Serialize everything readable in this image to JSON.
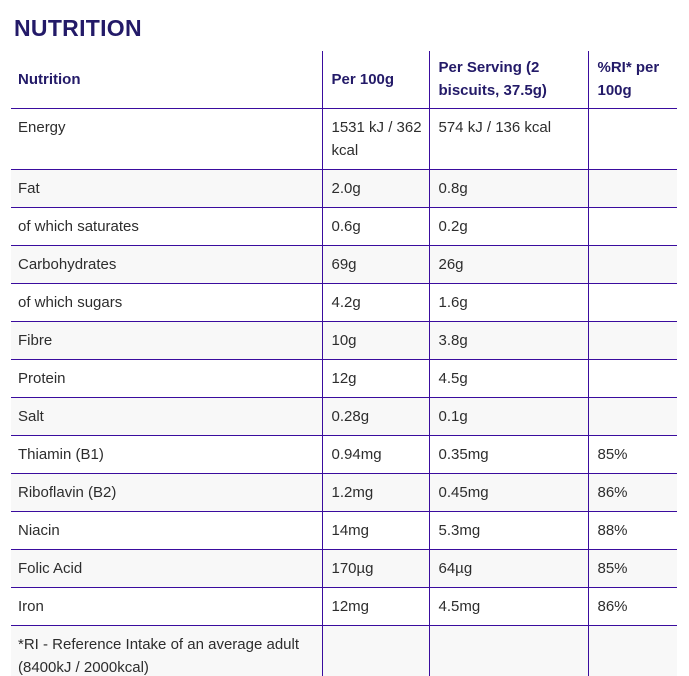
{
  "heading": "NUTRITION",
  "colors": {
    "accent_line": "#3a0c9e",
    "heading_text": "#231a68",
    "body_text": "#2d2d2d",
    "alt_row_bg": "#f8f8f8",
    "page_bg": "#ffffff"
  },
  "table": {
    "columns": [
      "Nutrition",
      "Per 100g",
      "Per Serving (2 biscuits, 37.5g)",
      "%RI* per 100g"
    ],
    "column_keys": [
      "nutrition",
      "per-100g",
      "per-serving",
      "ri-per-100g"
    ],
    "rows": [
      [
        "Energy",
        "1531 kJ / 362 kcal",
        "574 kJ / 136 kcal",
        ""
      ],
      [
        "Fat",
        "2.0g",
        "0.8g",
        ""
      ],
      [
        "of which saturates",
        "0.6g",
        "0.2g",
        ""
      ],
      [
        "Carbohydrates",
        "69g",
        "26g",
        ""
      ],
      [
        "of which sugars",
        "4.2g",
        "1.6g",
        ""
      ],
      [
        "Fibre",
        "10g",
        "3.8g",
        ""
      ],
      [
        "Protein",
        "12g",
        "4.5g",
        ""
      ],
      [
        "Salt",
        "0.28g",
        "0.1g",
        ""
      ],
      [
        "Thiamin (B1)",
        "0.94mg",
        "0.35mg",
        "85%"
      ],
      [
        "Riboflavin (B2)",
        "1.2mg",
        "0.45mg",
        "86%"
      ],
      [
        "Niacin",
        "14mg",
        "5.3mg",
        "88%"
      ],
      [
        "Folic Acid",
        "170µg",
        "64µg",
        "85%"
      ],
      [
        "Iron",
        "12mg",
        "4.5mg",
        "86%"
      ]
    ],
    "footnote": "*RI - Reference Intake of an average adult (8400kJ / 2000kcal)"
  }
}
